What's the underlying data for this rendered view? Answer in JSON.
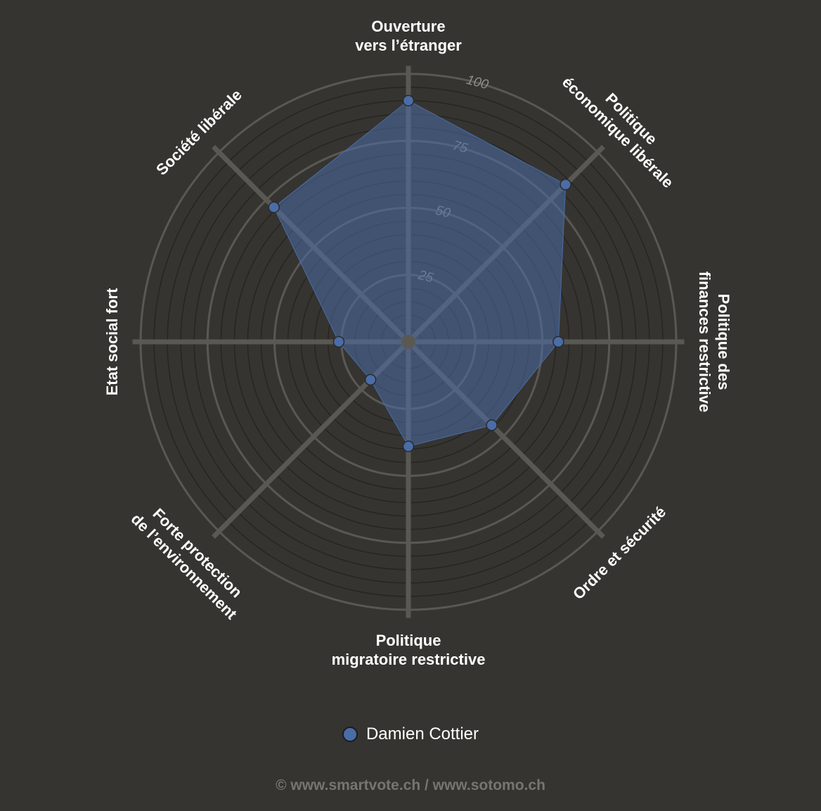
{
  "chart_data": {
    "type": "radar",
    "categories": [
      [
        "Ouverture",
        "vers l’étranger"
      ],
      [
        "Politique",
        "économique libérale"
      ],
      [
        "Politique des",
        "finances restrictive"
      ],
      [
        "Ordre et sécurité"
      ],
      [
        "Politique",
        "migratoire restrictive"
      ],
      [
        "Forte protection",
        "de l’environnement"
      ],
      [
        "Etat social fort"
      ],
      [
        "Société libérale"
      ]
    ],
    "series": [
      {
        "name": "Damien Cottier",
        "color": "#4a6da7",
        "values": [
          90,
          83,
          56,
          44,
          39,
          20,
          26,
          71
        ]
      }
    ],
    "rlim": [
      0,
      100
    ],
    "ticks": [
      25,
      50,
      75,
      100
    ],
    "grid": true,
    "legend": "bottom-center"
  },
  "footer": "© www.smartvote.ch / www.sotomo.ch",
  "colors": {
    "background": "#363430",
    "grid": "#5a5853",
    "area": "#4a6da7"
  }
}
